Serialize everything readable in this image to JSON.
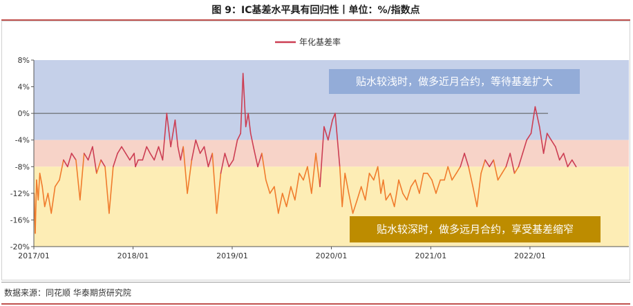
{
  "title": "图 9：IC基差水平具有回归性丨单位：%/指数点",
  "source": "数据来源：同花顺 华泰期货研究院",
  "colors": {
    "zone_top": "#c5d0e9",
    "zone_mid": "#f7d3c8",
    "zone_bottom": "#fdedb5",
    "line_high": "#cc3d52",
    "line_low": "#f07b2c",
    "anno_top_bg": "#93acd8",
    "anno_bottom_bg": "#bd8c00",
    "title_rule": "#c0504d"
  },
  "annotations": {
    "top": "贴水较浅时，做多近月合约，等待基差扩大",
    "bottom": "贴水较深时，做多远月合约，享受基差缩窄"
  },
  "chart_data": {
    "type": "line",
    "x": [
      "2017-01-02",
      "2017-01-06",
      "2017-01-11",
      "2017-01-17",
      "2017-01-23",
      "2017-02-01",
      "2017-02-10",
      "2017-02-22",
      "2017-03-06",
      "2017-03-20",
      "2017-04-05",
      "2017-04-20",
      "2017-05-05",
      "2017-05-20",
      "2017-06-05",
      "2017-06-20",
      "2017-07-05",
      "2017-07-20",
      "2017-08-05",
      "2017-08-20",
      "2017-09-05",
      "2017-09-20",
      "2017-10-05",
      "2017-10-20",
      "2017-11-05",
      "2017-11-20",
      "2017-12-05",
      "2017-12-20",
      "2018-01-05",
      "2018-01-10",
      "2018-01-20",
      "2018-02-05",
      "2018-02-20",
      "2018-03-05",
      "2018-03-20",
      "2018-04-05",
      "2018-04-20",
      "2018-05-05",
      "2018-05-20",
      "2018-06-05",
      "2018-06-15",
      "2018-06-25",
      "2018-07-05",
      "2018-07-20",
      "2018-08-05",
      "2018-08-20",
      "2018-09-05",
      "2018-09-20",
      "2018-10-05",
      "2018-10-20",
      "2018-11-05",
      "2018-11-20",
      "2018-12-05",
      "2018-12-20",
      "2019-01-05",
      "2019-01-20",
      "2019-02-01",
      "2019-02-10",
      "2019-02-20",
      "2019-03-01",
      "2019-03-10",
      "2019-03-20",
      "2019-04-05",
      "2019-04-20",
      "2019-05-05",
      "2019-05-20",
      "2019-06-05",
      "2019-06-20",
      "2019-07-05",
      "2019-07-20",
      "2019-08-05",
      "2019-08-20",
      "2019-09-05",
      "2019-09-20",
      "2019-10-05",
      "2019-10-20",
      "2019-11-05",
      "2019-11-20",
      "2019-12-05",
      "2019-12-20",
      "2020-01-05",
      "2020-01-15",
      "2020-02-01",
      "2020-02-10",
      "2020-02-20",
      "2020-03-05",
      "2020-03-20",
      "2020-04-05",
      "2020-04-20",
      "2020-05-05",
      "2020-05-20",
      "2020-06-05",
      "2020-06-20",
      "2020-07-01",
      "2020-07-10",
      "2020-07-20",
      "2020-08-05",
      "2020-08-20",
      "2020-09-05",
      "2020-09-20",
      "2020-10-05",
      "2020-10-20",
      "2020-11-05",
      "2020-11-20",
      "2020-12-05",
      "2020-12-20",
      "2021-01-05",
      "2021-01-20",
      "2021-02-05",
      "2021-02-20",
      "2021-03-05",
      "2021-03-20",
      "2021-04-05",
      "2021-04-20",
      "2021-05-05",
      "2021-05-20",
      "2021-06-05",
      "2021-06-20",
      "2021-07-05",
      "2021-07-20",
      "2021-08-05",
      "2021-08-20",
      "2021-09-05",
      "2021-09-20",
      "2021-10-05",
      "2021-10-20",
      "2021-11-05",
      "2021-11-20",
      "2021-12-05",
      "2021-12-20",
      "2022-01-05",
      "2022-01-20",
      "2022-02-05",
      "2022-02-20",
      "2022-03-05",
      "2022-03-20",
      "2022-04-05",
      "2022-04-20",
      "2022-05-05",
      "2022-05-20",
      "2022-06-05",
      "2022-06-20"
    ],
    "series": [
      {
        "name": "年化基差率",
        "values": [
          -12,
          -18,
          -10,
          -13,
          -9,
          -11,
          -14,
          -12,
          -15,
          -11,
          -10,
          -7,
          -8,
          -6,
          -7,
          -13,
          -6,
          -7,
          -5,
          -9,
          -7,
          -8,
          -15,
          -8,
          -6,
          -5,
          -6,
          -7,
          -6,
          -8,
          -7,
          -7,
          -5,
          -6,
          -7,
          -5,
          -7,
          0,
          -5,
          -1,
          -5,
          -7,
          -5,
          -12,
          -7,
          -4,
          -6,
          -5,
          -8,
          -6,
          -15,
          -9,
          -6,
          -8,
          -7,
          -4,
          -3,
          6,
          -2,
          0,
          -3,
          -5,
          -8,
          -6,
          -10,
          -12,
          -11,
          -15,
          -12,
          -14,
          -11,
          -13,
          -9,
          -10,
          -8,
          -12,
          -6,
          -11,
          -2,
          -4,
          -1,
          0,
          -8,
          -14,
          -9,
          -12,
          -15,
          -13,
          -11,
          -13,
          -9,
          -10,
          -8,
          -12,
          -10,
          -13,
          -12,
          -14,
          -10,
          -12,
          -13,
          -11,
          -10,
          -12,
          -9,
          -9,
          -10,
          -12,
          -10,
          -10,
          -8,
          -10,
          -9,
          -8,
          -6,
          -8,
          -11,
          -14,
          -9,
          -7,
          -8,
          -7,
          -10,
          -9,
          -8,
          -6,
          -9,
          -8,
          -6,
          -4,
          -3,
          1,
          -2,
          -6,
          -3,
          -4,
          -5,
          -7,
          -6,
          -8,
          -7,
          -8
        ]
      }
    ],
    "ylim": [
      -20,
      8
    ],
    "yticks": [
      8,
      4,
      0,
      -4,
      -8,
      -12,
      -16,
      -20
    ],
    "ytick_labels": [
      "8%",
      "4%",
      "0%",
      "-4%",
      "-8%",
      "-12%",
      "-16%",
      "-20%"
    ],
    "xticks": [
      "2017/01",
      "2018/01",
      "2019/01",
      "2020/01",
      "2021/01",
      "2022/01"
    ],
    "xlim": [
      "2017-01-01",
      "2022-12-31"
    ],
    "bands": [
      {
        "from": -4,
        "to": 8,
        "color": "#c5d0e9"
      },
      {
        "from": -8,
        "to": -4,
        "color": "#f7d3c8"
      },
      {
        "from": -20,
        "to": -8,
        "color": "#fdedb5"
      }
    ],
    "color_split": -8,
    "grid": false,
    "legend": "top-center"
  }
}
